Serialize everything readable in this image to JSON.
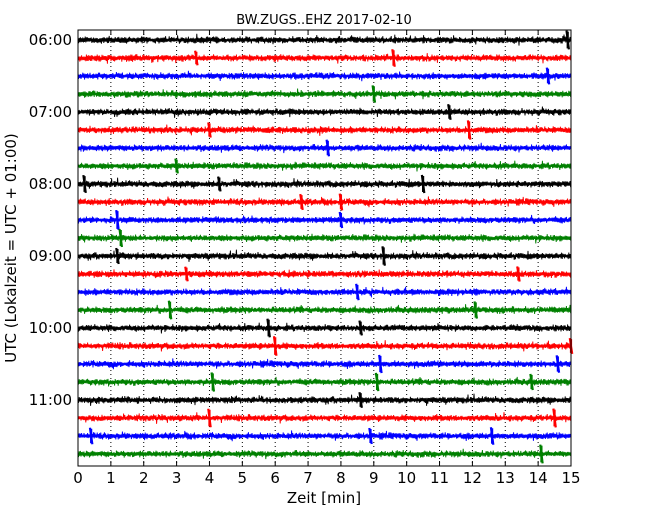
{
  "chart_data": {
    "type": "line",
    "subtype": "seismogram-dayplot",
    "title": "BW.ZUGS..EHZ 2017-02-10",
    "xlabel": "Zeit  [min]",
    "ylabel": "UTC (Lokalzeit = UTC + 01:00)",
    "xlim": [
      0,
      15
    ],
    "x_ticks": [
      "0",
      "1",
      "2",
      "3",
      "4",
      "5",
      "6",
      "7",
      "8",
      "9",
      "10",
      "11",
      "12",
      "13",
      "14",
      "15"
    ],
    "y_ticks": [
      "06:00",
      "07:00",
      "08:00",
      "09:00",
      "10:00",
      "11:00"
    ],
    "trace_interval_min": 15,
    "grid": "vertical dotted at each minute",
    "color_cycle": [
      "#000000",
      "#ff0000",
      "#0000ff",
      "#008000"
    ],
    "traces": [
      {
        "start": "06:00",
        "events": [
          14.9
        ]
      },
      {
        "start": "06:15",
        "events": [
          3.6,
          9.6
        ]
      },
      {
        "start": "06:30",
        "events": [
          14.3
        ]
      },
      {
        "start": "06:45",
        "events": [
          9.0
        ]
      },
      {
        "start": "07:00",
        "events": [
          11.3
        ]
      },
      {
        "start": "07:15",
        "events": [
          4.0,
          11.9
        ]
      },
      {
        "start": "07:30",
        "events": [
          7.6
        ]
      },
      {
        "start": "07:45",
        "events": [
          3.0
        ]
      },
      {
        "start": "08:00",
        "events": [
          0.2,
          4.3,
          10.5
        ]
      },
      {
        "start": "08:15",
        "events": [
          6.8,
          8.0
        ]
      },
      {
        "start": "08:30",
        "events": [
          1.2,
          8.0
        ]
      },
      {
        "start": "08:45",
        "events": [
          1.3
        ]
      },
      {
        "start": "09:00",
        "events": [
          1.2,
          9.3
        ]
      },
      {
        "start": "09:15",
        "events": [
          3.3,
          13.4
        ]
      },
      {
        "start": "09:30",
        "events": [
          8.5
        ]
      },
      {
        "start": "09:45",
        "events": [
          2.8,
          12.1
        ]
      },
      {
        "start": "10:00",
        "events": [
          5.8,
          8.6
        ]
      },
      {
        "start": "10:15",
        "events": [
          6.0,
          15.0
        ]
      },
      {
        "start": "10:30",
        "events": [
          9.2,
          14.6
        ]
      },
      {
        "start": "10:45",
        "events": [
          4.1,
          9.1,
          13.8
        ]
      },
      {
        "start": "11:00",
        "events": [
          8.6
        ]
      },
      {
        "start": "11:15",
        "events": [
          4.0,
          14.5
        ]
      },
      {
        "start": "11:30",
        "events": [
          0.4,
          8.9,
          12.6
        ]
      },
      {
        "start": "11:45",
        "events": [
          14.1
        ]
      }
    ]
  }
}
